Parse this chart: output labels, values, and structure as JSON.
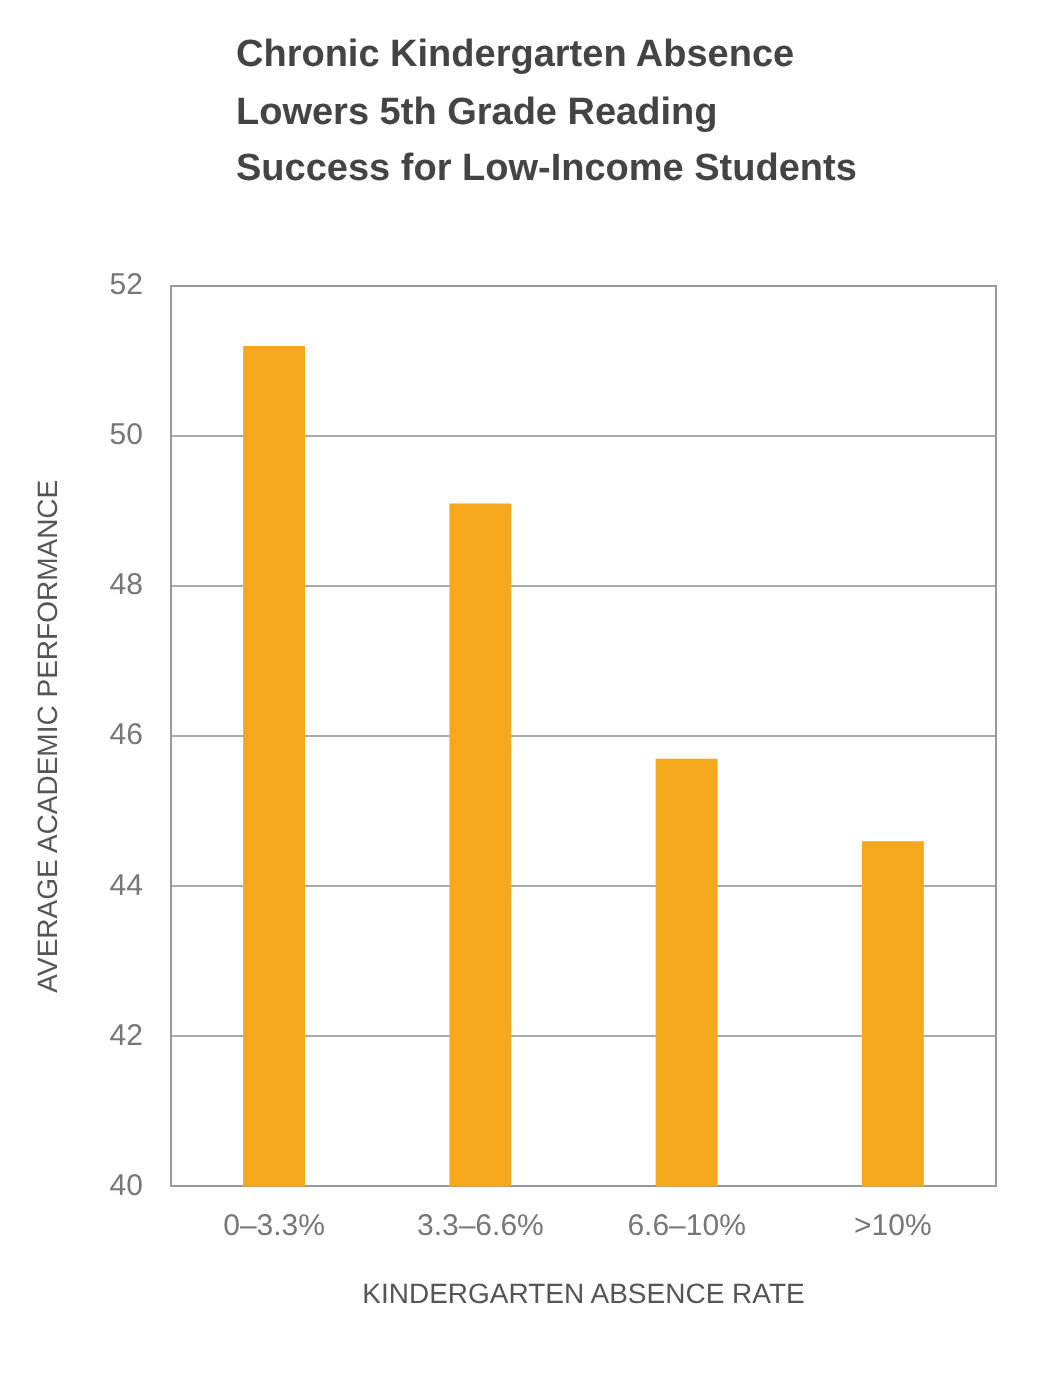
{
  "chart_data": {
    "type": "bar",
    "title": "Chronic Kindergarten Absence Lowers 5th Grade Reading Success for Low-Income Students",
    "xlabel": "KINDERGARTEN ABSENCE RATE",
    "ylabel": "AVERAGE ACADEMIC PERFORMANCE",
    "categories": [
      "0–3.3%",
      "3.3–6.6%",
      "6.6–10%",
      ">10%"
    ],
    "values": [
      51.2,
      49.1,
      45.7,
      44.6
    ],
    "color": "#f5a81c",
    "ylim": [
      40,
      52
    ],
    "yticks": [
      40,
      42,
      44,
      46,
      48,
      50,
      52
    ],
    "grid": "y"
  }
}
